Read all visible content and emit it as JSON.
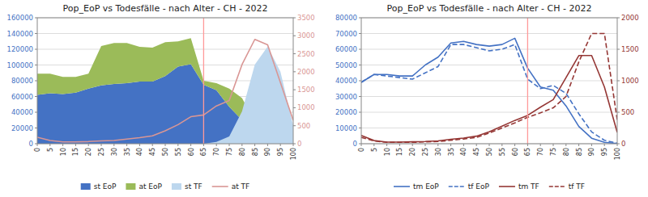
{
  "chart_data": [
    {
      "type": "area",
      "title": "Pop_EoP vs Todesfälle - nach Alter - CH - 2022",
      "x": [
        0,
        5,
        10,
        15,
        20,
        25,
        30,
        35,
        40,
        45,
        50,
        55,
        60,
        65,
        70,
        75,
        80,
        85,
        90,
        95,
        100
      ],
      "series": [
        {
          "name": "st EoP",
          "type": "area",
          "color": "#4472C4",
          "values": [
            62000,
            64000,
            63000,
            65000,
            70000,
            74000,
            76000,
            77000,
            79000,
            79000,
            86000,
            98000,
            101000,
            75000,
            68000,
            47000,
            30000,
            14000,
            5000,
            1200,
            200
          ]
        },
        {
          "name": "at EoP",
          "type": "area",
          "color": "#9BBB59",
          "values": [
            27000,
            25000,
            22000,
            20000,
            19000,
            50000,
            52000,
            51000,
            44000,
            43000,
            43000,
            32000,
            33000,
            5000,
            9000,
            23000,
            28000,
            14000,
            6000,
            1500,
            300
          ]
        },
        {
          "name": "st TF",
          "type": "area",
          "axis": "y2",
          "color": "#BDD7EE",
          "values": [
            0,
            0,
            0,
            0,
            0,
            0,
            0,
            0,
            0,
            0,
            0,
            0,
            0,
            0,
            50,
            200,
            900,
            2200,
            2700,
            2000,
            500
          ]
        },
        {
          "name": "at TF",
          "type": "line",
          "axis": "y2",
          "color": "#D99694",
          "line_style": "solid",
          "values": [
            180,
            90,
            50,
            50,
            60,
            80,
            90,
            130,
            170,
            220,
            360,
            530,
            750,
            800,
            1050,
            1200,
            2200,
            2900,
            2750,
            1700,
            650
          ]
        }
      ],
      "stacked": true,
      "vline": {
        "x": 65,
        "color": "#FF9999"
      },
      "xlim": [
        0,
        100
      ],
      "xticks": [
        0,
        5,
        10,
        15,
        20,
        25,
        30,
        35,
        40,
        45,
        50,
        55,
        60,
        65,
        70,
        75,
        80,
        85,
        90,
        95,
        100
      ],
      "ylim": [
        0,
        160000
      ],
      "yticks": [
        0,
        20000,
        40000,
        60000,
        80000,
        100000,
        120000,
        140000,
        160000
      ],
      "y2lim": [
        0,
        3500
      ],
      "y2ticks": [
        0,
        500,
        1000,
        1500,
        2000,
        2500,
        3000,
        3500
      ],
      "grid": true,
      "legend": "bottom"
    },
    {
      "type": "line",
      "title": "Pop_EoP vs Todesfälle - nach Alter - CH - 2022",
      "x": [
        0,
        5,
        10,
        15,
        20,
        25,
        30,
        35,
        40,
        45,
        50,
        55,
        60,
        65,
        70,
        75,
        80,
        85,
        90,
        95,
        100
      ],
      "series": [
        {
          "name": "tm EoP",
          "color": "#4472C4",
          "line_style": "solid",
          "values": [
            39000,
            44000,
            44000,
            43000,
            43000,
            50000,
            55000,
            64000,
            65000,
            63000,
            62000,
            63000,
            67000,
            48000,
            36000,
            34000,
            24000,
            11000,
            3500,
            900,
            150
          ]
        },
        {
          "name": "tf EoP",
          "color": "#4472C4",
          "line_style": "dashed",
          "values": [
            39000,
            44000,
            43000,
            42000,
            41000,
            45000,
            49000,
            63000,
            63000,
            61000,
            59000,
            60000,
            63000,
            41000,
            35000,
            37000,
            32000,
            19000,
            7500,
            2200,
            350
          ]
        },
        {
          "name": "tm TF",
          "axis": "y2",
          "color": "#953735",
          "line_style": "solid",
          "values": [
            130,
            50,
            25,
            25,
            30,
            35,
            45,
            70,
            90,
            120,
            190,
            280,
            370,
            450,
            580,
            700,
            1050,
            1400,
            1400,
            900,
            180
          ]
        },
        {
          "name": "tf TF",
          "axis": "y2",
          "color": "#953735",
          "line_style": "dashed",
          "values": [
            100,
            45,
            22,
            22,
            22,
            30,
            35,
            55,
            75,
            100,
            170,
            250,
            330,
            420,
            490,
            570,
            750,
            1300,
            1750,
            1750,
            380
          ]
        }
      ],
      "vline": {
        "x": 65,
        "color": "#FF9999"
      },
      "xlim": [
        0,
        100
      ],
      "xticks": [
        0,
        5,
        10,
        15,
        20,
        25,
        30,
        35,
        40,
        45,
        50,
        55,
        60,
        65,
        70,
        75,
        80,
        85,
        90,
        95,
        100
      ],
      "ylim": [
        0,
        80000
      ],
      "yticks": [
        0,
        10000,
        20000,
        30000,
        40000,
        50000,
        60000,
        70000,
        80000
      ],
      "y2lim": [
        0,
        2000
      ],
      "y2ticks": [
        0,
        500,
        1000,
        1500,
        2000
      ],
      "grid": true,
      "legend": "bottom"
    }
  ]
}
